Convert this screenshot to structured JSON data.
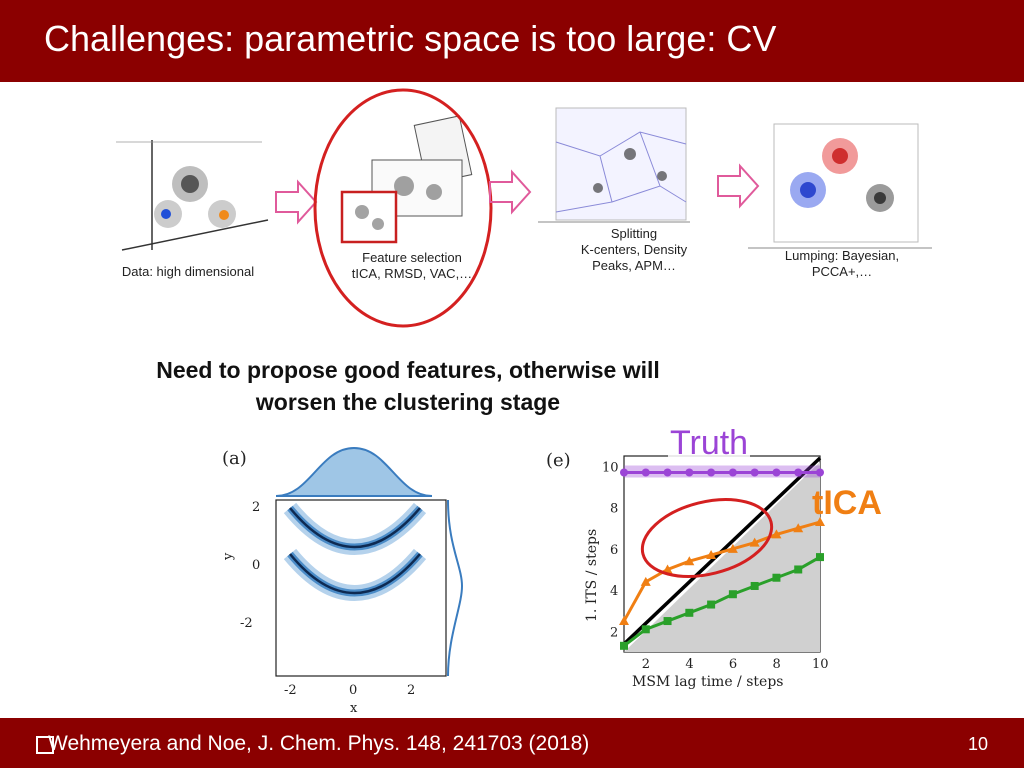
{
  "slide": {
    "title": "Challenges: parametric space is too large: CV",
    "note_line1": "Need to propose good features, otherwise will",
    "note_line2": "worsen the clustering stage",
    "footer": "Wehmeyera and Noe, J. Chem. Phys. 148, 241703 (2018)",
    "slide_number": "10"
  },
  "pipeline": {
    "step1": "Data: high dimensional",
    "step2_line1": "Feature selection",
    "step2_line2": "tICA, RMSD, VAC,…",
    "step3_line1": "Splitting",
    "step3_line2": "K-centers, Density",
    "step3_line3": "Peaks, APM…",
    "step4_line1": "Lumping: Bayesian,",
    "step4_line2": "PCCA+,…"
  },
  "annotations": {
    "truth": "Truth",
    "tica": "tICA"
  },
  "colors": {
    "title_bar": "#8b0000",
    "arrow": "#e05a9b",
    "highlight_circle": "#d42020",
    "truth": "#9b44d6",
    "tica": "#f07f13",
    "vac": "#2aa02a"
  },
  "chart_data": [
    {
      "type": "heatmap",
      "panel_label": "(a)",
      "xlabel": "x",
      "ylabel": "y",
      "xticks": [
        -2,
        0,
        2
      ],
      "yticks": [
        -2,
        0,
        2
      ],
      "xlim": [
        -3,
        3
      ],
      "ylim": [
        -3,
        3
      ]
    },
    {
      "type": "line",
      "panel_label": "(e)",
      "xlabel": "MSM lag time / steps",
      "ylabel": "1. ITS / steps",
      "xticks": [
        2,
        4,
        6,
        8,
        10
      ],
      "yticks": [
        2,
        4,
        6,
        8,
        10
      ],
      "xlim": [
        1,
        10
      ],
      "ylim": [
        1,
        10.5
      ],
      "x": [
        1,
        2,
        3,
        4,
        5,
        6,
        7,
        8,
        9,
        10
      ],
      "series": [
        {
          "name": "Truth",
          "color": "#9b44d6",
          "values": [
            9.7,
            9.7,
            9.7,
            9.7,
            9.7,
            9.7,
            9.7,
            9.7,
            9.7,
            9.7
          ]
        },
        {
          "name": "tICA",
          "color": "#f07f13",
          "values": [
            2.5,
            4.4,
            5.0,
            5.4,
            5.7,
            6.0,
            6.3,
            6.7,
            7.0,
            7.3
          ]
        },
        {
          "color": "#2aa02a",
          "values": [
            1.3,
            2.1,
            2.5,
            2.9,
            3.3,
            3.8,
            4.2,
            4.6,
            5.0,
            5.6
          ]
        }
      ]
    }
  ]
}
